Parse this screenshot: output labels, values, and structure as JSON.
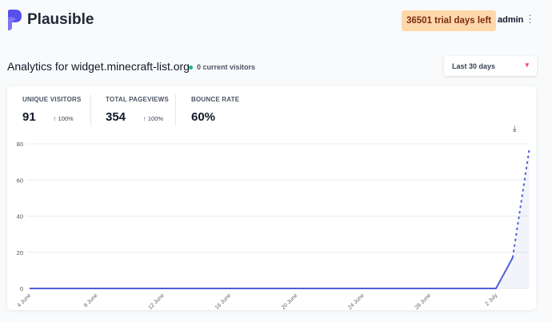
{
  "header": {
    "brand": "Plausible",
    "trial_badge": "36501 trial days left",
    "user": "admin"
  },
  "site": {
    "title": "Analytics for widget.minecraft-list.org",
    "current_visitors": "0 current visitors",
    "period": "Last 30 days"
  },
  "stats": [
    {
      "label": "UNIQUE VISITORS",
      "value": "91",
      "change": "↑ 100%"
    },
    {
      "label": "TOTAL PAGEVIEWS",
      "value": "354",
      "change": "↑ 100%"
    },
    {
      "label": "BOUNCE RATE",
      "value": "60%",
      "change": ""
    }
  ],
  "colors": {
    "accent": "#4f5fd6",
    "trial_bg": "#fed7aa",
    "live": "#10b981"
  },
  "chart_data": {
    "type": "line",
    "ylim": [
      0,
      80
    ],
    "yticks": [
      0,
      20,
      40,
      60,
      80
    ],
    "xtick_labels": [
      "4 June",
      "8 June",
      "12 June",
      "16 June",
      "20 June",
      "24 June",
      "28 June",
      "2 July"
    ],
    "x": [
      "4 June",
      "5 June",
      "6 June",
      "7 June",
      "8 June",
      "9 June",
      "10 June",
      "11 June",
      "12 June",
      "13 June",
      "14 June",
      "15 June",
      "16 June",
      "17 June",
      "18 June",
      "19 June",
      "20 June",
      "21 June",
      "22 June",
      "23 June",
      "24 June",
      "25 June",
      "26 June",
      "27 June",
      "28 June",
      "29 June",
      "30 June",
      "1 July",
      "2 July",
      "3 July",
      "4 July"
    ],
    "values": [
      0,
      0,
      0,
      0,
      0,
      0,
      0,
      0,
      0,
      0,
      0,
      0,
      0,
      0,
      0,
      0,
      0,
      0,
      0,
      0,
      0,
      0,
      0,
      0,
      0,
      0,
      0,
      0,
      0,
      17,
      77
    ],
    "dashed_last_segment": true,
    "grid": true
  }
}
